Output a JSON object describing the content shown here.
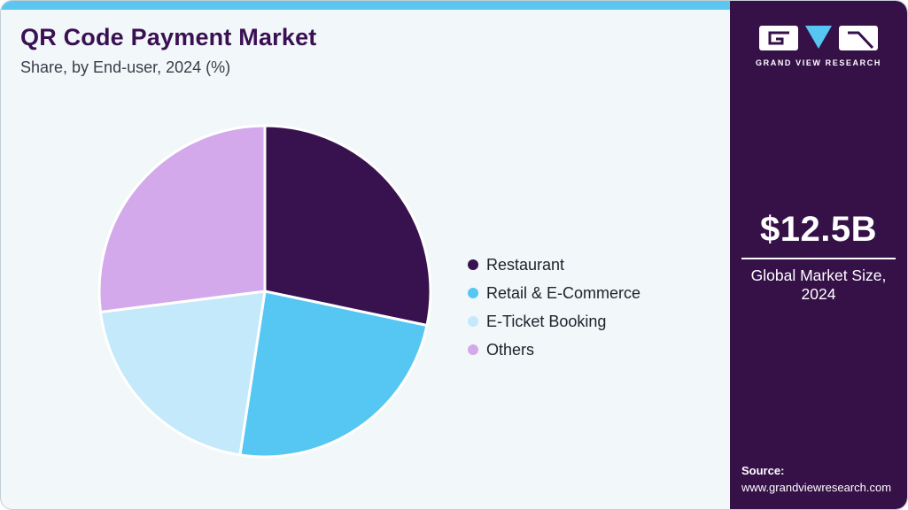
{
  "header": {
    "title": "QR Code Payment Market",
    "subtitle": "Share, by End-user, 2024 (%)"
  },
  "chart_data": {
    "type": "pie",
    "title": "QR Code Payment Market Share, by End-user, 2024 (%)",
    "categories": [
      "Restaurant",
      "Retail & E-Commerce",
      "E-Ticket Booking",
      "Others"
    ],
    "values": [
      28.3,
      24.1,
      20.6,
      27.0
    ],
    "units": "%",
    "colors": [
      "#38124E",
      "#56C7F2",
      "#C3E9FA",
      "#D3A9EC"
    ],
    "start_angle": "top",
    "direction": "clockwise",
    "legend_position": "right",
    "slice_border_color": "#FFFFFF"
  },
  "sidebar": {
    "brand_name": "GRAND VIEW RESEARCH",
    "market_size_value": "$12.5B",
    "market_size_label_line1": "Global Market Size,",
    "market_size_label_line2": "2024",
    "source_label": "Source:",
    "source_url": "www.grandviewresearch.com"
  },
  "theme": {
    "accent_bar": "#5BC6F0",
    "sidebar_bg": "#361148",
    "card_bg": "#F2F7FA",
    "title_color": "#3A1053",
    "subtitle_color": "#3C3C48",
    "legend_text_color": "#22222C",
    "logo_triangle": "#56C7F2"
  }
}
